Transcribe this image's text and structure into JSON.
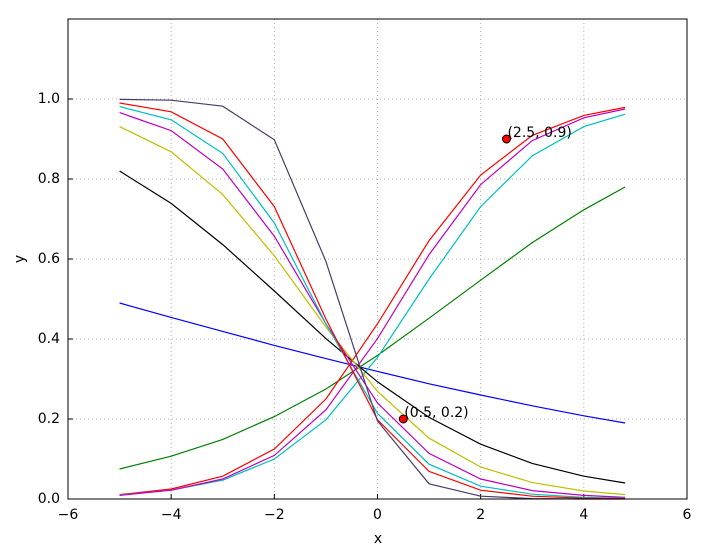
{
  "chart_data": {
    "type": "line",
    "xlabel": "x",
    "ylabel": "y",
    "x": [
      -5,
      -4,
      -3,
      -2,
      -1,
      0,
      1,
      2,
      3,
      4,
      4.8
    ],
    "series": [
      {
        "color": "#0000ff",
        "values": [
          0.49,
          0.454,
          0.419,
          0.384,
          0.351,
          0.319,
          0.288,
          0.26,
          0.233,
          0.208,
          0.19
        ]
      },
      {
        "color": "#008000",
        "values": [
          0.075,
          0.107,
          0.149,
          0.206,
          0.275,
          0.359,
          0.452,
          0.547,
          0.641,
          0.723,
          0.78
        ]
      },
      {
        "color": "#ff0000",
        "values": [
          0.011,
          0.025,
          0.057,
          0.125,
          0.25,
          0.438,
          0.646,
          0.81,
          0.909,
          0.959,
          0.979
        ]
      },
      {
        "color": "#00bfbf",
        "values": [
          0.01,
          0.022,
          0.047,
          0.1,
          0.198,
          0.354,
          0.55,
          0.731,
          0.858,
          0.931,
          0.962
        ]
      },
      {
        "color": "#bf00bf",
        "values": [
          0.009,
          0.022,
          0.05,
          0.109,
          0.223,
          0.401,
          0.611,
          0.786,
          0.896,
          0.953,
          0.975
        ]
      },
      {
        "color": "#000000",
        "values": [
          0.82,
          0.739,
          0.636,
          0.52,
          0.401,
          0.293,
          0.204,
          0.137,
          0.089,
          0.057,
          0.04
        ]
      },
      {
        "color": "#bfbf00",
        "values": [
          0.931,
          0.868,
          0.761,
          0.608,
          0.43,
          0.269,
          0.152,
          0.08,
          0.041,
          0.02,
          0.011
        ]
      },
      {
        "color": "#bf00bf",
        "values": [
          0.966,
          0.921,
          0.825,
          0.657,
          0.438,
          0.24,
          0.114,
          0.05,
          0.021,
          0.009,
          0.004
        ]
      },
      {
        "color": "#00bfbf",
        "values": [
          0.981,
          0.948,
          0.864,
          0.69,
          0.438,
          0.214,
          0.087,
          0.032,
          0.012,
          0.004,
          0.002
        ]
      },
      {
        "color": "#ff0000",
        "values": [
          0.99,
          0.968,
          0.9,
          0.731,
          0.45,
          0.198,
          0.069,
          0.022,
          0.007,
          0.002,
          0.001
        ]
      },
      {
        "color": "#4b3b6b",
        "values": [
          0.999,
          0.997,
          0.982,
          0.898,
          0.594,
          0.195,
          0.038,
          0.007,
          0.001,
          0,
          0
        ]
      }
    ],
    "points": {
      "color": "#ff0000",
      "x": [
        2.5,
        0.5
      ],
      "y": [
        0.9,
        0.2
      ],
      "labels": [
        "(2.5, 0.9)",
        "(0.5, 0.2)"
      ]
    },
    "xlim": [
      -6,
      6
    ],
    "xticks": [
      {
        "value": -6,
        "label": "−6"
      },
      {
        "value": -4,
        "label": "−4"
      },
      {
        "value": -2,
        "label": "−2"
      },
      0,
      2,
      4,
      6
    ],
    "ylim": [
      0,
      1.2
    ],
    "yticks": [
      {
        "value": 0,
        "label": "0.0"
      },
      0.2,
      0.4,
      0.6,
      0.8,
      {
        "value": 1,
        "label": "1.0"
      }
    ],
    "grid": true
  }
}
